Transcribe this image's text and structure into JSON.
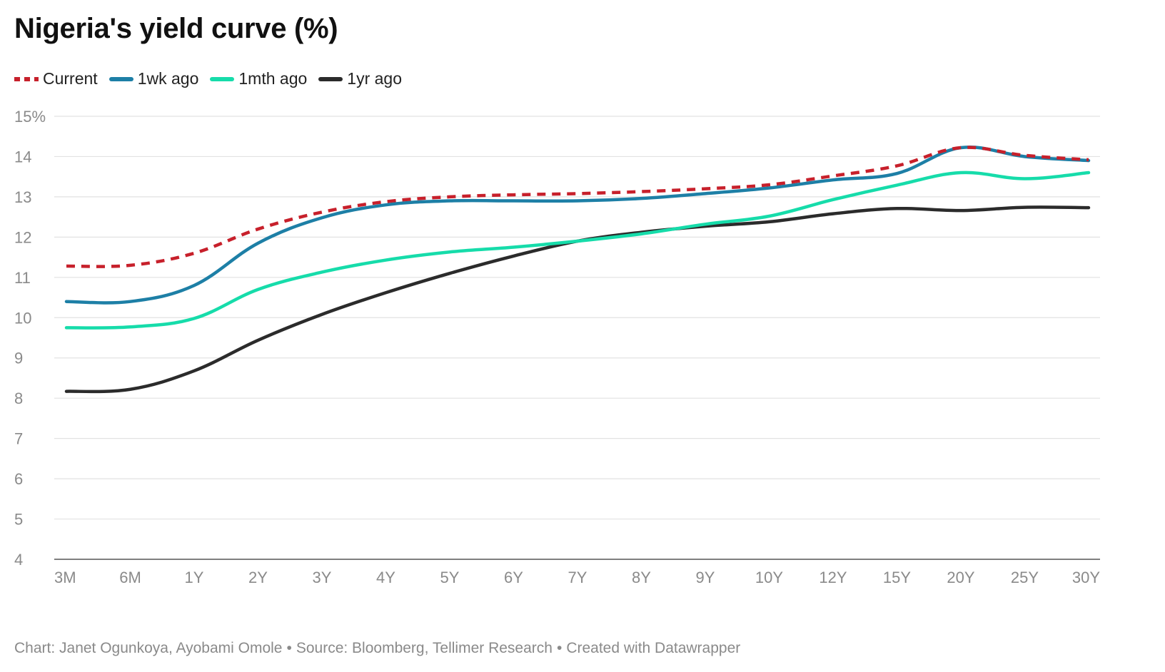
{
  "title": "Nigeria's yield curve (%)",
  "footer": {
    "credit": "Chart: Janet Ogunkoya, Ayobami Omole",
    "source": "Source: Bloomberg, Tellimer Research",
    "tool": "Created with Datawrapper",
    "separator": "•"
  },
  "chart_data": {
    "type": "line",
    "title": "Nigeria's yield curve (%)",
    "xlabel": "",
    "ylabel": "",
    "categories": [
      "3M",
      "6M",
      "1Y",
      "2Y",
      "3Y",
      "4Y",
      "5Y",
      "6Y",
      "7Y",
      "8Y",
      "9Y",
      "10Y",
      "12Y",
      "15Y",
      "20Y",
      "25Y",
      "30Y"
    ],
    "ylim": [
      4,
      15
    ],
    "yticks": [
      4,
      5,
      6,
      7,
      8,
      9,
      10,
      11,
      12,
      13,
      14,
      15
    ],
    "ytick_labels": [
      "4",
      "5",
      "6",
      "7",
      "8",
      "9",
      "10",
      "11",
      "12",
      "13",
      "14",
      "15%"
    ],
    "grid": true,
    "legend_position": "top-left",
    "series": [
      {
        "name": "Current",
        "color": "#c7202b",
        "dashed": true,
        "values": [
          11.28,
          11.3,
          11.6,
          12.2,
          12.62,
          12.88,
          13.0,
          13.05,
          13.08,
          13.13,
          13.2,
          13.3,
          13.52,
          13.77,
          14.22,
          14.03,
          13.92
        ]
      },
      {
        "name": "1wk ago",
        "color": "#1d7fa6",
        "dashed": false,
        "values": [
          10.4,
          10.4,
          10.8,
          11.85,
          12.48,
          12.8,
          12.9,
          12.9,
          12.9,
          12.96,
          13.08,
          13.22,
          13.42,
          13.58,
          14.22,
          14.0,
          13.9
        ]
      },
      {
        "name": "1mth ago",
        "color": "#16dcaa",
        "dashed": false,
        "values": [
          9.75,
          9.77,
          9.98,
          10.7,
          11.13,
          11.43,
          11.63,
          11.75,
          11.9,
          12.08,
          12.32,
          12.52,
          12.93,
          13.29,
          13.6,
          13.45,
          13.6
        ]
      },
      {
        "name": "1yr ago",
        "color": "#2b2b2b",
        "dashed": false,
        "values": [
          8.17,
          8.22,
          8.68,
          9.44,
          10.08,
          10.62,
          11.1,
          11.53,
          11.9,
          12.12,
          12.27,
          12.38,
          12.58,
          12.71,
          12.66,
          12.74,
          12.73
        ]
      }
    ]
  }
}
